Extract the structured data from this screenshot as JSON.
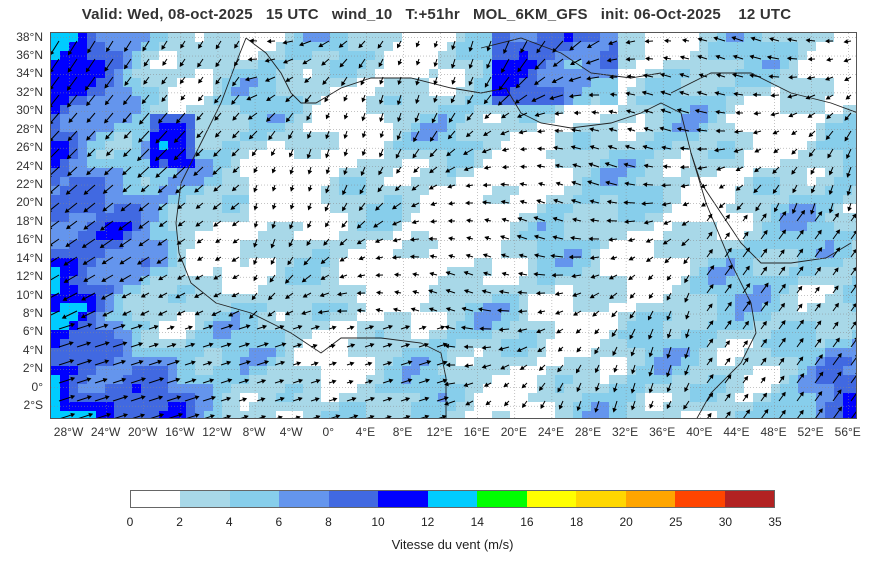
{
  "title": "Valid: Wed, 08-oct-2025   15 UTC   wind_10   T:+51hr   MOL_6KM_GFS   init: 06-Oct-2025    12 UTC",
  "lat_labels": [
    "38°N",
    "36°N",
    "34°N",
    "32°N",
    "30°N",
    "28°N",
    "26°N",
    "24°N",
    "22°N",
    "20°N",
    "18°N",
    "16°N",
    "14°N",
    "12°N",
    "10°N",
    "8°N",
    "6°N",
    "4°N",
    "2°N",
    "0°",
    "2°S"
  ],
  "lon_labels": [
    "28°W",
    "24°W",
    "20°W",
    "16°W",
    "12°W",
    "8°W",
    "4°W",
    "0°",
    "4°E",
    "8°E",
    "12°E",
    "16°E",
    "20°E",
    "24°E",
    "28°E",
    "32°E",
    "36°E",
    "40°E",
    "44°E",
    "48°E",
    "52°E",
    "56°E"
  ],
  "colorbar": {
    "label": "Vitesse du vent (m/s)",
    "ticks": [
      "0",
      "2",
      "4",
      "6",
      "8",
      "10",
      "12",
      "14",
      "16",
      "18",
      "20",
      "25",
      "30",
      "35"
    ],
    "colors": [
      "#ffffff",
      "#a8d8e8",
      "#87ceeb",
      "#6495ed",
      "#4169e1",
      "#0000ff",
      "#00ccff",
      "#00ff00",
      "#ffff00",
      "#ffd700",
      "#ffa500",
      "#ff4500",
      "#b22222"
    ]
  },
  "map": {
    "extent": {
      "lon_min": -30,
      "lon_max": 57,
      "lat_min": -3.5,
      "lat_max": 38.5
    },
    "background_color": "#ffffff",
    "grid": true
  }
}
